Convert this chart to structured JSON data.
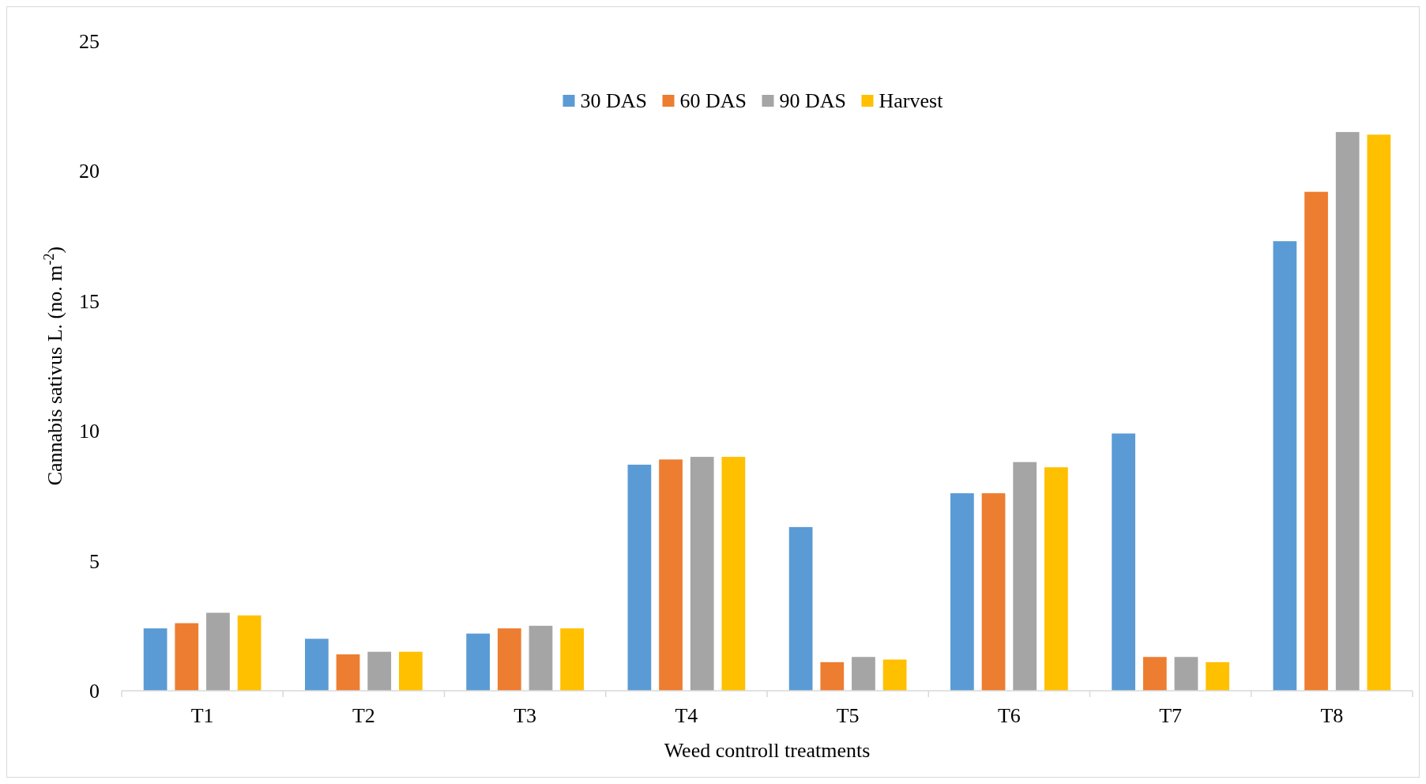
{
  "chart_data": {
    "type": "bar",
    "xlabel": "Weed controll treatments",
    "ylabel": "Cannabis sativus L. (no. m$^{-2}$)",
    "categories": [
      "T1",
      "T2",
      "T3",
      "T4",
      "T5",
      "T6",
      "T7",
      "T8"
    ],
    "series": [
      {
        "name": "30 DAS",
        "color": "#5b9bd5",
        "values": [
          2.4,
          2.0,
          2.2,
          8.7,
          6.3,
          7.6,
          9.9,
          17.3
        ]
      },
      {
        "name": "60 DAS",
        "color": "#ed7d31",
        "values": [
          2.6,
          1.4,
          2.4,
          8.9,
          1.1,
          7.6,
          1.3,
          19.2
        ]
      },
      {
        "name": "90 DAS",
        "color": "#a5a5a5",
        "values": [
          3.0,
          1.5,
          2.5,
          9.0,
          1.3,
          8.8,
          1.3,
          21.5
        ]
      },
      {
        "name": "Harvest",
        "color": "#ffc000",
        "values": [
          2.9,
          1.5,
          2.4,
          9.0,
          1.2,
          8.6,
          1.1,
          21.4
        ]
      }
    ],
    "ylim": [
      0,
      25
    ],
    "yticks": [
      0,
      5,
      10,
      15,
      20,
      25
    ],
    "legend": "top",
    "grid": false
  }
}
